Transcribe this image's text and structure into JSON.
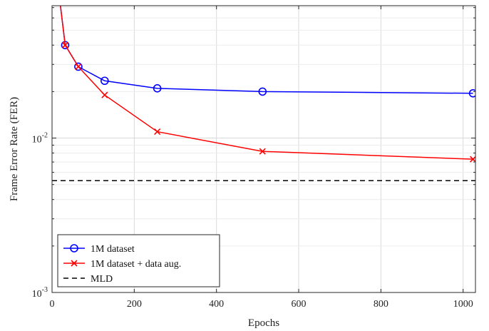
{
  "chart_data": {
    "type": "line",
    "title": "",
    "xlabel": "Epochs",
    "ylabel": "Frame Error Rate (FER)",
    "xlim": [
      0,
      1030
    ],
    "ylim": [
      0.001,
      0.072
    ],
    "yscale": "log",
    "grid": true,
    "legend_position": "bottom-left",
    "x_ticks": [
      0,
      200,
      400,
      600,
      800,
      1000
    ],
    "x_tick_labels": [
      "0",
      "200",
      "400",
      "600",
      "800",
      "1000"
    ],
    "y_ticks": [
      0.001,
      0.01
    ],
    "y_tick_labels": [
      {
        "base": "10",
        "exp": "-3"
      },
      {
        "base": "10",
        "exp": "-2"
      }
    ],
    "series": [
      {
        "name": "1M dataset",
        "color": "#0000ff",
        "marker": "circle",
        "line_style": "solid",
        "x": [
          16,
          32,
          64,
          128,
          256,
          512,
          1024
        ],
        "y": [
          0.09,
          0.04,
          0.029,
          0.0235,
          0.021,
          0.02,
          0.0195
        ]
      },
      {
        "name": "1M dataset + data aug.",
        "color": "#ff0000",
        "marker": "x",
        "line_style": "solid",
        "x": [
          16,
          32,
          64,
          128,
          256,
          512,
          1024
        ],
        "y": [
          0.09,
          0.04,
          0.029,
          0.019,
          0.011,
          0.0082,
          0.0073
        ]
      },
      {
        "name": "MLD",
        "color": "#000000",
        "marker": "none",
        "line_style": "dashed",
        "x": [
          0,
          1030
        ],
        "y": [
          0.0053,
          0.0053
        ]
      }
    ]
  }
}
